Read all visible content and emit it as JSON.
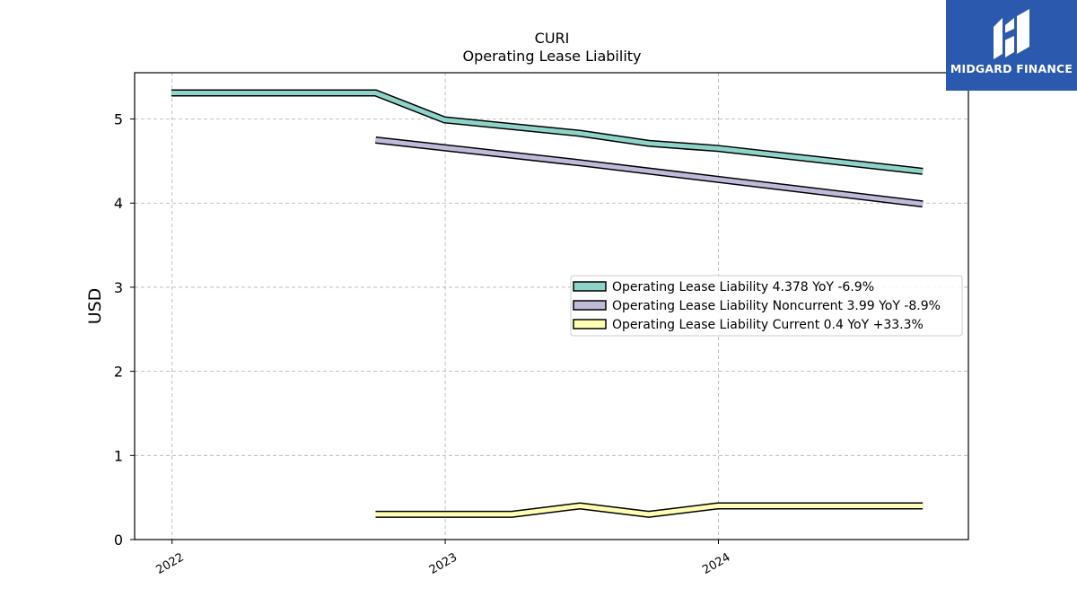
{
  "logo": {
    "text": "MIDGARD FINANCE"
  },
  "chart_data": {
    "type": "line",
    "title": "CURI",
    "subtitle": "Operating Lease Liability",
    "ylabel": "USD",
    "xlabel": "",
    "ylim": [
      0,
      5.55
    ],
    "xlim": [
      "2021-11-12",
      "2024-11-30"
    ],
    "yticks": [
      0,
      1,
      2,
      3,
      4,
      5
    ],
    "xticks": [
      {
        "date": "2022-01-01",
        "label": "2022"
      },
      {
        "date": "2023-01-01",
        "label": "2023"
      },
      {
        "date": "2024-01-01",
        "label": "2024"
      }
    ],
    "grid": true,
    "legend_position": "center-right",
    "series": [
      {
        "name": "Operating Lease Liability",
        "legend": "Operating Lease Liability  4.378 YoY -6.9%",
        "color": "#8dd3c7",
        "points": [
          [
            "2021-12-31",
            5.31
          ],
          [
            "2022-09-30",
            5.31
          ],
          [
            "2022-12-31",
            4.99
          ],
          [
            "2023-06-30",
            4.83
          ],
          [
            "2023-09-30",
            4.71
          ],
          [
            "2023-12-31",
            4.65
          ],
          [
            "2024-09-30",
            4.378
          ]
        ]
      },
      {
        "name": "Operating Lease Liability Noncurrent",
        "legend": "Operating Lease Liability Noncurrent  3.99 YoY -8.9%",
        "color": "#bebada",
        "points": [
          [
            "2022-09-30",
            4.75
          ],
          [
            "2023-06-30",
            4.48
          ],
          [
            "2024-09-30",
            3.99
          ]
        ]
      },
      {
        "name": "Operating Lease Liability Current",
        "legend": "Operating Lease Liability Current  0.4 YoY +33.3%",
        "color": "#ffffb3",
        "points": [
          [
            "2022-09-30",
            0.3
          ],
          [
            "2023-03-31",
            0.3
          ],
          [
            "2023-06-30",
            0.4
          ],
          [
            "2023-09-30",
            0.3
          ],
          [
            "2023-12-31",
            0.4
          ],
          [
            "2024-09-30",
            0.4
          ]
        ]
      }
    ]
  }
}
